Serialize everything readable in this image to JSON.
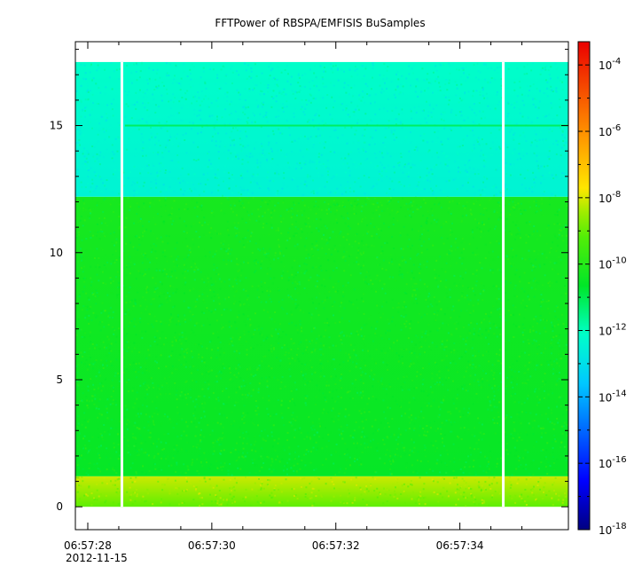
{
  "chart_data": {
    "type": "heatmap",
    "title": "FFTPower of RBSPA/EMFISIS  BuSamples",
    "xlabel": "",
    "ylabel": "",
    "x_ticks": [
      {
        "value": 28,
        "label": "06:57:28"
      },
      {
        "value": 30,
        "label": "06:57:30"
      },
      {
        "value": 32,
        "label": "06:57:32"
      },
      {
        "value": 34,
        "label": "06:57:34"
      }
    ],
    "x_date_label": "2012-11-15",
    "x_minor_ticks": [
      28.5,
      29.5,
      30.5,
      31.5,
      32.5,
      33.5,
      34.5,
      35.0
    ],
    "xlim": [
      27.8,
      35.75
    ],
    "y_ticks": [
      0,
      5,
      10,
      15
    ],
    "ylim": [
      -0.9,
      18.3
    ],
    "data_x_range": [
      27.8,
      35.75
    ],
    "data_y_range": [
      0,
      17.5
    ],
    "gaps_x": [
      28.55,
      34.7
    ],
    "bands": [
      {
        "y_from": 0.0,
        "y_to": 1.2,
        "log_power": -8.6
      },
      {
        "y_from": 1.2,
        "y_to": 12.2,
        "log_power": -10.4
      },
      {
        "y_from": 12.2,
        "y_to": 17.5,
        "log_power": -12.3
      }
    ],
    "line_feature": {
      "y": 15.0,
      "log_power": -11.0
    },
    "colorbar": {
      "scale": "log",
      "range_exp": [
        -18,
        -3.3
      ],
      "tick_exponents": [
        -4,
        -6,
        -8,
        -10,
        -12,
        -14,
        -16,
        -18
      ],
      "base": "10"
    }
  }
}
